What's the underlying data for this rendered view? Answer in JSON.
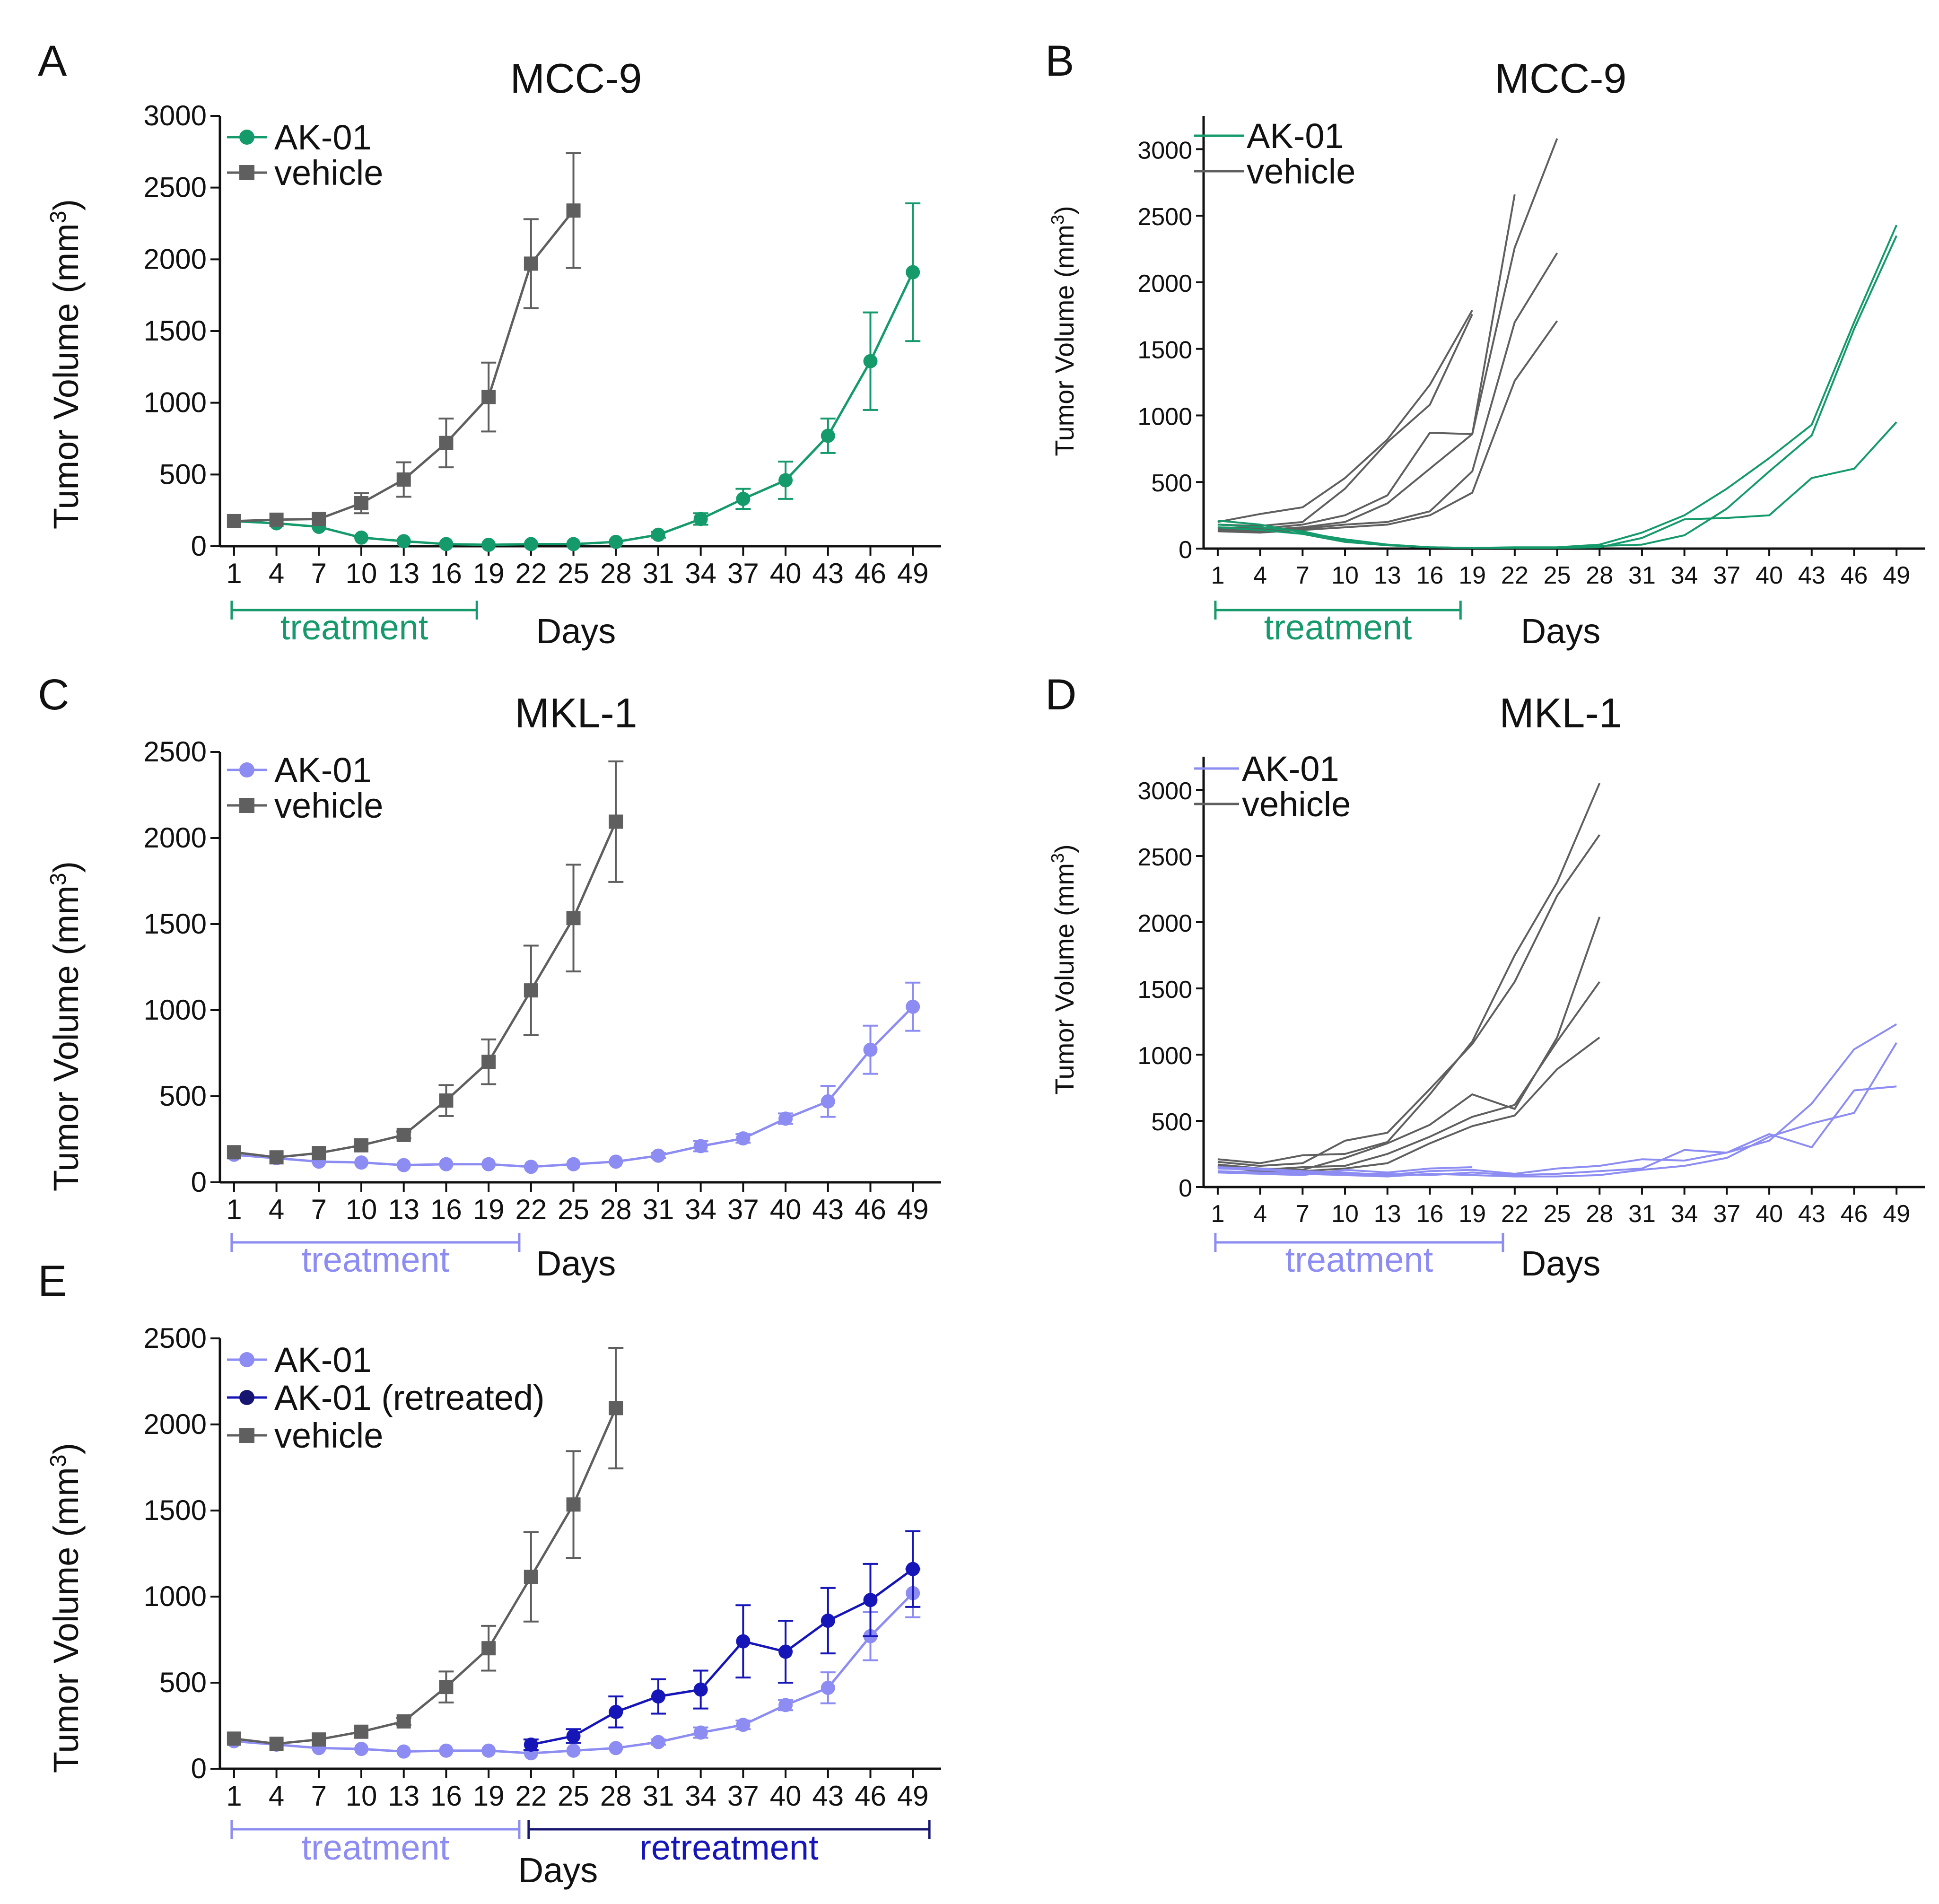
{
  "colors": {
    "mcc_green": "#159A6B",
    "mkl_lavender": "#8C8CF2",
    "retreated_navy": "#1616B8",
    "retreat_bracket": "#161670",
    "vehicle_gray": "#5F5F5F",
    "axis": "#111111"
  },
  "chart_data": [
    {
      "panel": "A",
      "type": "line",
      "title": "MCC-9",
      "xlabel": "Days",
      "ylabel": "Tumor Volume (mm3)",
      "x_ticks": [
        1,
        4,
        7,
        10,
        13,
        16,
        19,
        22,
        25,
        28,
        31,
        34,
        37,
        40,
        43,
        46,
        49
      ],
      "xlim": [
        0,
        51
      ],
      "ylim": [
        0,
        3000
      ],
      "y_ticks": [
        0,
        500,
        1000,
        1500,
        2000,
        2500,
        3000
      ],
      "legend": "top-left",
      "series": [
        {
          "name": "AK-01",
          "color_key": "mcc_green",
          "marker": "circle",
          "x": [
            1,
            4,
            7,
            10,
            13,
            16,
            19,
            22,
            25,
            28,
            31,
            34,
            37,
            40,
            43,
            46,
            49
          ],
          "y": [
            175,
            160,
            135,
            60,
            35,
            15,
            10,
            15,
            15,
            30,
            80,
            190,
            330,
            460,
            770,
            1290,
            1910
          ],
          "err": [
            0,
            0,
            0,
            0,
            0,
            0,
            0,
            0,
            0,
            0,
            20,
            40,
            70,
            130,
            120,
            340,
            480
          ]
        },
        {
          "name": "vehicle",
          "color_key": "vehicle_gray",
          "marker": "square",
          "x": [
            1,
            4,
            7,
            10,
            13,
            16,
            19,
            22,
            25
          ],
          "y": [
            175,
            185,
            190,
            300,
            465,
            720,
            1040,
            1970,
            2340
          ],
          "err": [
            0,
            0,
            0,
            70,
            120,
            170,
            240,
            310,
            400
          ]
        }
      ],
      "bracket": {
        "label": "treatment",
        "from": 1,
        "to": 18,
        "color_key": "mcc_green"
      }
    },
    {
      "panel": "B",
      "type": "line",
      "title": "MCC-9",
      "xlabel": "Days",
      "ylabel": "Tumor Volume (mm3)",
      "x_ticks": [
        1,
        4,
        7,
        10,
        13,
        16,
        19,
        22,
        25,
        28,
        31,
        34,
        37,
        40,
        43,
        46,
        49
      ],
      "xlim": [
        0,
        51
      ],
      "ylim": [
        0,
        3250
      ],
      "y_ticks": [
        0,
        500,
        1000,
        1500,
        2000,
        2500,
        3000
      ],
      "legend": "top-left",
      "legend_items": [
        {
          "name": "AK-01",
          "color_key": "mcc_green"
        },
        {
          "name": "vehicle",
          "color_key": "vehicle_gray"
        }
      ],
      "series": [
        {
          "name": "vehicle",
          "color_key": "vehicle_gray",
          "x": [
            1,
            4,
            7,
            10,
            13,
            16,
            19
          ],
          "y": [
            200,
            260,
            310,
            530,
            820,
            1230,
            1790
          ]
        },
        {
          "name": "vehicle",
          "color_key": "vehicle_gray",
          "x": [
            1,
            4,
            7,
            10,
            13,
            16,
            19
          ],
          "y": [
            180,
            170,
            200,
            450,
            800,
            1080,
            1760
          ]
        },
        {
          "name": "vehicle",
          "color_key": "vehicle_gray",
          "x": [
            1,
            4,
            7,
            10,
            13,
            16,
            19,
            22
          ],
          "y": [
            160,
            150,
            180,
            250,
            400,
            870,
            860,
            2660
          ]
        },
        {
          "name": "vehicle",
          "color_key": "vehicle_gray",
          "x": [
            1,
            4,
            7,
            10,
            13,
            16,
            19,
            22,
            25
          ],
          "y": [
            150,
            140,
            160,
            200,
            340,
            600,
            860,
            2260,
            3080
          ]
        },
        {
          "name": "vehicle",
          "color_key": "vehicle_gray",
          "x": [
            1,
            4,
            7,
            10,
            13,
            16,
            19,
            22,
            25
          ],
          "y": [
            140,
            130,
            150,
            180,
            200,
            280,
            580,
            1700,
            2220
          ]
        },
        {
          "name": "vehicle",
          "color_key": "vehicle_gray",
          "x": [
            1,
            4,
            7,
            10,
            13,
            16,
            19,
            22,
            25
          ],
          "y": [
            130,
            120,
            140,
            160,
            180,
            250,
            420,
            1260,
            1710
          ]
        },
        {
          "name": "AK-01",
          "color_key": "mcc_green",
          "x": [
            1,
            4,
            7,
            10,
            13,
            16,
            19,
            22,
            25,
            28,
            31,
            34,
            37,
            40,
            43,
            46,
            49
          ],
          "y": [
            210,
            180,
            120,
            70,
            30,
            10,
            5,
            10,
            10,
            30,
            120,
            250,
            450,
            680,
            930,
            1700,
            2430
          ]
        },
        {
          "name": "AK-01",
          "color_key": "mcc_green",
          "x": [
            1,
            4,
            7,
            10,
            13,
            16,
            19,
            22,
            25,
            28,
            31,
            34,
            37,
            40,
            43,
            46,
            49
          ],
          "y": [
            180,
            160,
            130,
            60,
            30,
            10,
            5,
            5,
            5,
            20,
            30,
            100,
            300,
            580,
            850,
            1650,
            2350
          ]
        },
        {
          "name": "AK-01",
          "color_key": "mcc_green",
          "x": [
            1,
            4,
            7,
            10,
            13,
            16,
            19,
            22,
            25,
            28,
            31,
            34,
            37,
            40,
            43,
            46,
            49
          ],
          "y": [
            160,
            140,
            110,
            50,
            25,
            10,
            5,
            5,
            5,
            10,
            80,
            220,
            230,
            250,
            530,
            600,
            950
          ]
        }
      ],
      "bracket": {
        "label": "treatment",
        "from": 1,
        "to": 18,
        "color_key": "mcc_green"
      }
    },
    {
      "panel": "C",
      "type": "line",
      "title": "MKL-1",
      "xlabel": "Days",
      "ylabel": "Tumor Volume (mm3)",
      "x_ticks": [
        1,
        4,
        7,
        10,
        13,
        16,
        19,
        22,
        25,
        28,
        31,
        34,
        37,
        40,
        43,
        46,
        49
      ],
      "xlim": [
        0,
        51
      ],
      "ylim": [
        0,
        2500
      ],
      "y_ticks": [
        0,
        500,
        1000,
        1500,
        2000,
        2500
      ],
      "legend": "top-left",
      "series": [
        {
          "name": "AK-01",
          "color_key": "mkl_lavender",
          "marker": "circle",
          "x": [
            1,
            4,
            7,
            10,
            13,
            16,
            19,
            22,
            25,
            28,
            31,
            34,
            37,
            40,
            43,
            46,
            49
          ],
          "y": [
            160,
            140,
            120,
            115,
            100,
            105,
            105,
            90,
            105,
            120,
            155,
            210,
            255,
            370,
            470,
            770,
            1020
          ],
          "err": [
            0,
            0,
            0,
            0,
            0,
            0,
            0,
            0,
            0,
            0,
            15,
            30,
            25,
            30,
            90,
            140,
            140
          ]
        },
        {
          "name": "vehicle",
          "color_key": "vehicle_gray",
          "marker": "square",
          "x": [
            1,
            4,
            7,
            10,
            13,
            16,
            19,
            22,
            25,
            28
          ],
          "y": [
            175,
            145,
            170,
            215,
            275,
            475,
            700,
            1115,
            1535,
            2095
          ],
          "err": [
            0,
            0,
            0,
            0,
            20,
            90,
            130,
            260,
            310,
            350
          ]
        }
      ],
      "bracket": {
        "label": "treatment",
        "from": 1,
        "to": 21,
        "color_key": "mkl_lavender"
      }
    },
    {
      "panel": "D",
      "type": "line",
      "title": "MKL-1",
      "xlabel": "Days",
      "ylabel": "Tumor Volume (mm3)",
      "x_ticks": [
        1,
        4,
        7,
        10,
        13,
        16,
        19,
        22,
        25,
        28,
        31,
        34,
        37,
        40,
        43,
        46,
        49
      ],
      "xlim": [
        0,
        51
      ],
      "ylim": [
        0,
        3250
      ],
      "y_ticks": [
        0,
        500,
        1000,
        1500,
        2000,
        2500,
        3000
      ],
      "legend": "top-left",
      "legend_items": [
        {
          "name": "AK-01",
          "color_key": "mkl_lavender"
        },
        {
          "name": "vehicle",
          "color_key": "vehicle_gray"
        }
      ],
      "series": [
        {
          "name": "vehicle",
          "color_key": "vehicle_gray",
          "x": [
            1,
            4,
            7,
            10,
            13,
            16,
            19,
            22,
            25,
            28
          ],
          "y": [
            210,
            180,
            240,
            250,
            340,
            700,
            1100,
            1750,
            2300,
            3050
          ]
        },
        {
          "name": "vehicle",
          "color_key": "vehicle_gray",
          "x": [
            1,
            4,
            7,
            10,
            13,
            16,
            19,
            22,
            25,
            28
          ],
          "y": [
            190,
            160,
            180,
            350,
            410,
            740,
            1080,
            1550,
            2200,
            2660
          ]
        },
        {
          "name": "vehicle",
          "color_key": "vehicle_gray",
          "x": [
            1,
            4,
            7,
            10,
            13,
            16,
            19,
            22,
            25,
            28
          ],
          "y": [
            170,
            140,
            130,
            220,
            330,
            470,
            700,
            590,
            1130,
            2040
          ]
        },
        {
          "name": "vehicle",
          "color_key": "vehicle_gray",
          "x": [
            1,
            4,
            7,
            10,
            13,
            16,
            19,
            22,
            25,
            28
          ],
          "y": [
            160,
            130,
            150,
            160,
            250,
            380,
            530,
            620,
            1100,
            1550
          ]
        },
        {
          "name": "vehicle",
          "color_key": "vehicle_gray",
          "x": [
            1,
            4,
            7,
            10,
            13,
            16,
            19,
            22,
            25,
            28
          ],
          "y": [
            150,
            120,
            120,
            140,
            180,
            330,
            460,
            540,
            890,
            1130
          ]
        },
        {
          "name": "AK-01",
          "color_key": "mkl_lavender",
          "x": [
            1,
            4,
            7,
            10,
            13,
            16,
            19,
            22,
            25,
            28,
            31,
            34,
            37,
            40,
            43,
            46,
            49
          ],
          "y": [
            150,
            140,
            120,
            110,
            90,
            120,
            130,
            100,
            140,
            160,
            210,
            200,
            260,
            350,
            630,
            1040,
            1230
          ]
        },
        {
          "name": "AK-01",
          "color_key": "mkl_lavender",
          "x": [
            1,
            4,
            7,
            10,
            13,
            16,
            19,
            22,
            25,
            28,
            31,
            34,
            37,
            40,
            43,
            46,
            49
          ],
          "y": [
            140,
            130,
            110,
            100,
            100,
            90,
            110,
            90,
            100,
            120,
            140,
            280,
            260,
            400,
            300,
            730,
            760
          ]
        },
        {
          "name": "AK-01",
          "color_key": "mkl_lavender",
          "x": [
            1,
            4,
            7,
            10,
            13,
            16,
            19,
            22,
            25,
            28,
            31,
            34,
            37,
            40,
            43,
            46,
            49
          ],
          "y": [
            120,
            110,
            100,
            90,
            80,
            100,
            90,
            80,
            80,
            90,
            130,
            160,
            220,
            380,
            480,
            560,
            1090
          ]
        },
        {
          "name": "AK-01",
          "color_key": "mkl_lavender",
          "x": [
            1,
            4,
            7,
            10,
            13,
            16,
            19
          ],
          "y": [
            110,
            100,
            90,
            130,
            110,
            140,
            150
          ]
        }
      ],
      "bracket": {
        "label": "treatment",
        "from": 1,
        "to": 21,
        "color_key": "mkl_lavender"
      }
    },
    {
      "panel": "E",
      "type": "line",
      "title": "",
      "xlabel": "Days",
      "ylabel": "Tumor Volume (mm3)",
      "x_ticks": [
        1,
        4,
        7,
        10,
        13,
        16,
        19,
        22,
        25,
        28,
        31,
        34,
        37,
        40,
        43,
        46,
        49
      ],
      "xlim": [
        0,
        51
      ],
      "ylim": [
        0,
        2500
      ],
      "y_ticks": [
        0,
        500,
        1000,
        1500,
        2000,
        2500
      ],
      "legend": "top-left",
      "series": [
        {
          "name": "AK-01",
          "color_key": "mkl_lavender",
          "marker": "circle",
          "x": [
            1,
            4,
            7,
            10,
            13,
            16,
            19,
            22,
            25,
            28,
            31,
            34,
            37,
            40,
            43,
            46,
            49
          ],
          "y": [
            160,
            140,
            120,
            115,
            100,
            105,
            105,
            90,
            105,
            120,
            155,
            210,
            255,
            370,
            470,
            770,
            1020
          ],
          "err": [
            0,
            0,
            0,
            0,
            0,
            0,
            0,
            0,
            0,
            0,
            15,
            30,
            25,
            30,
            90,
            140,
            140
          ]
        },
        {
          "name": "AK-01 (retreated)",
          "color_key": "retreated_navy",
          "marker": "circle",
          "x": [
            22,
            25,
            28,
            31,
            34,
            37,
            40,
            43,
            46,
            49
          ],
          "y": [
            140,
            190,
            330,
            420,
            460,
            740,
            680,
            860,
            980,
            1160
          ],
          "err": [
            30,
            40,
            90,
            100,
            110,
            210,
            180,
            190,
            210,
            220
          ]
        },
        {
          "name": "vehicle",
          "color_key": "vehicle_gray",
          "marker": "square",
          "x": [
            1,
            4,
            7,
            10,
            13,
            16,
            19,
            22,
            25,
            28
          ],
          "y": [
            175,
            145,
            170,
            215,
            275,
            475,
            700,
            1115,
            1535,
            2095
          ],
          "err": [
            0,
            0,
            0,
            0,
            20,
            90,
            130,
            260,
            310,
            350
          ]
        }
      ],
      "bracket": {
        "label": "treatment",
        "from": 1,
        "to": 21,
        "color_key": "mkl_lavender"
      },
      "bracket2": {
        "label": "retreatment",
        "from": 22,
        "to": 50,
        "color_key": "retreat_bracket",
        "label_color_key": "retreated_navy"
      }
    }
  ]
}
